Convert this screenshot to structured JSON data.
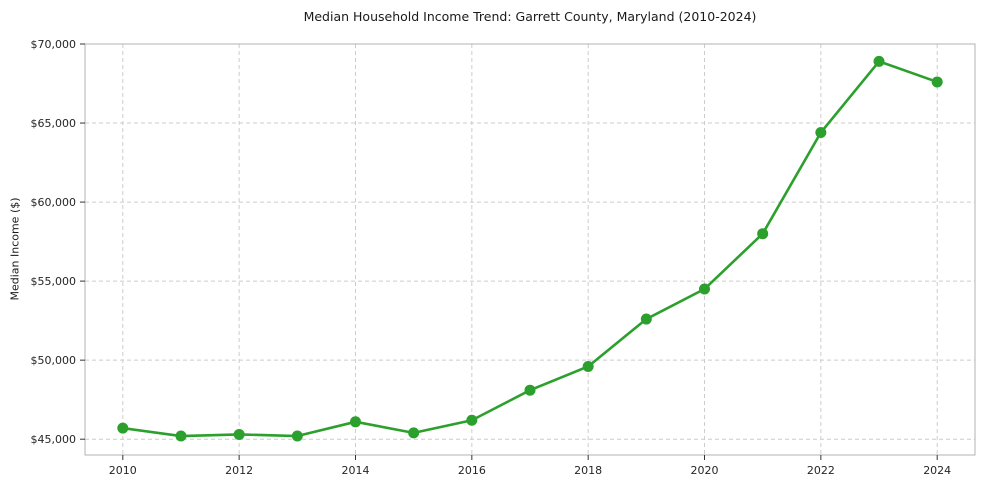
{
  "page": {
    "background": "#ffffff"
  },
  "chart_data": {
    "type": "line",
    "title": "Median Household Income Trend: Garrett County, Maryland (2010-2024)",
    "xlabel": "",
    "ylabel": "Median Income ($)",
    "series_name": "Median Household Income",
    "x": [
      2010,
      2011,
      2012,
      2013,
      2014,
      2015,
      2016,
      2017,
      2018,
      2019,
      2020,
      2021,
      2022,
      2023,
      2024
    ],
    "values": [
      45700,
      45200,
      45300,
      45200,
      46100,
      45400,
      46200,
      48100,
      49600,
      52600,
      54500,
      58000,
      64400,
      68900,
      67600
    ],
    "xticks": [
      2010,
      2012,
      2014,
      2016,
      2018,
      2020,
      2022,
      2024
    ],
    "xtick_labels": [
      "2010",
      "2012",
      "2014",
      "2016",
      "2018",
      "2020",
      "2022",
      "2024"
    ],
    "yticks": [
      45000,
      50000,
      55000,
      60000,
      65000,
      70000
    ],
    "ytick_labels": [
      "$45,000",
      "$50,000",
      "$55,000",
      "$60,000",
      "$65,000",
      "$70,000"
    ],
    "xlim": [
      2009.35,
      2024.65
    ],
    "ylim": [
      44000,
      70000
    ],
    "grid": true,
    "grid_style": "dashed",
    "legend": false,
    "line_color": "#2ca02c",
    "marker": "circle",
    "marker_size": 5.5,
    "plot_background": "#ffffff"
  }
}
